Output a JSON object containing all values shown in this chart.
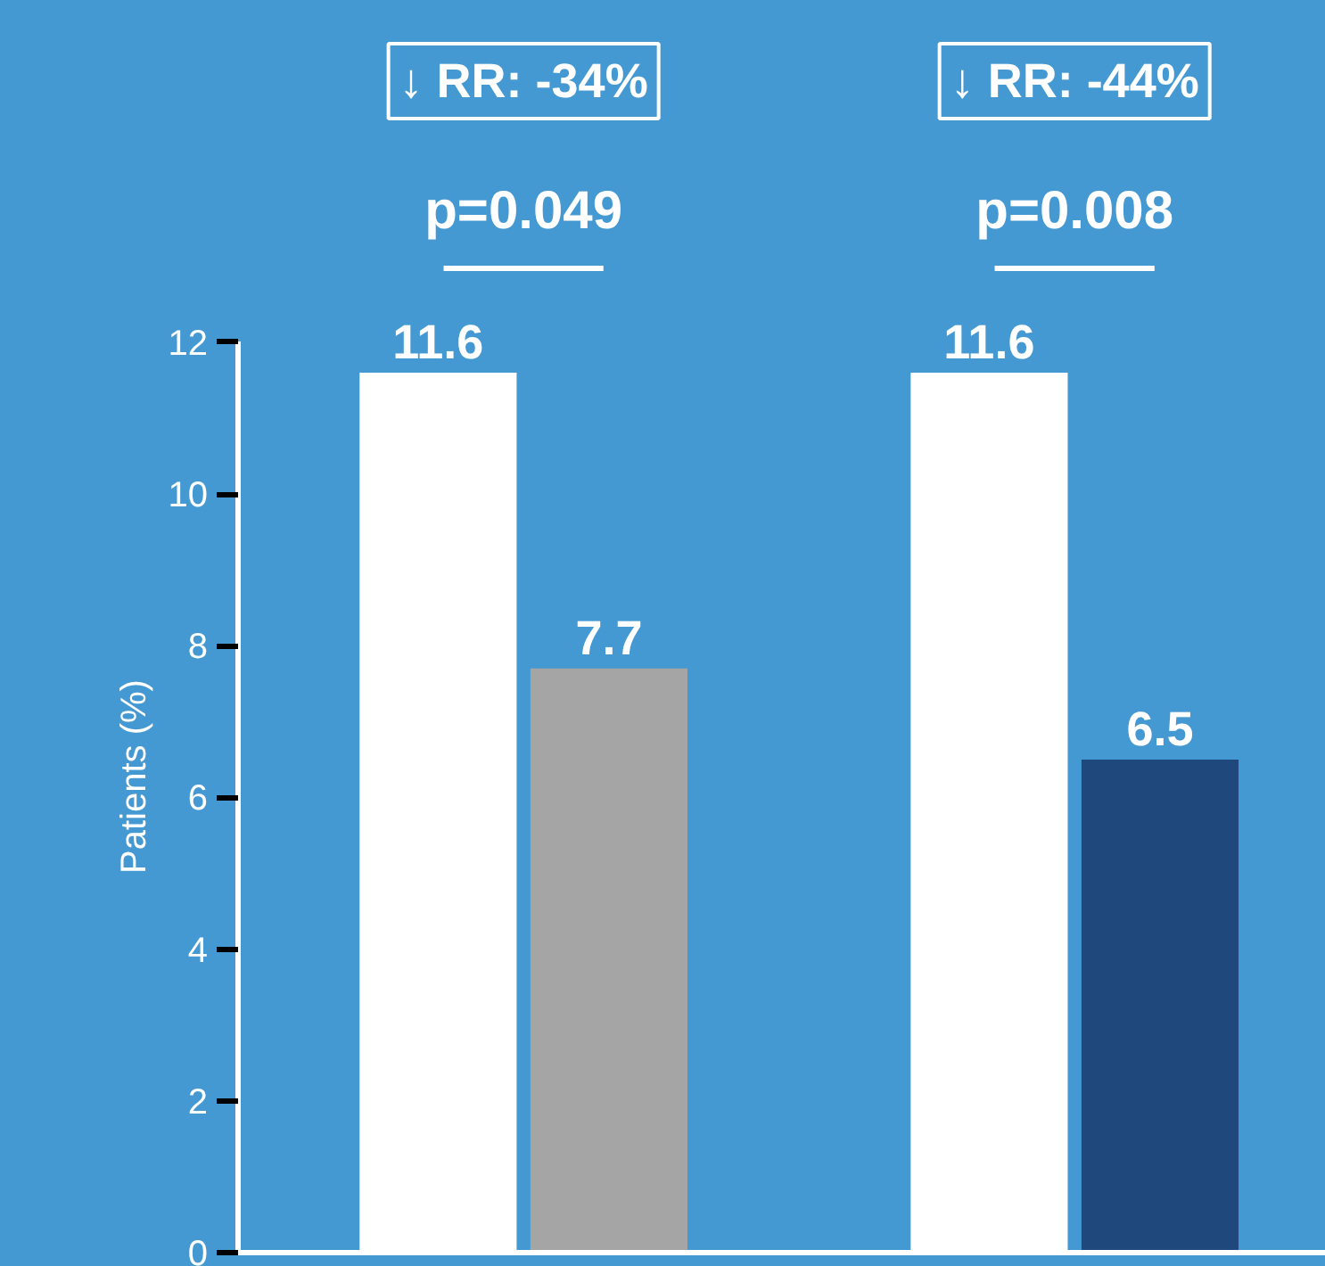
{
  "chart_data": {
    "type": "bar",
    "ylabel": "Patients (%)",
    "categories": [
      null,
      null
    ],
    "series": [
      {
        "color": "#ffffff",
        "values": [
          11.6,
          11.6
        ]
      },
      {
        "colors": [
          "#a5a5a5",
          "#1f497d"
        ],
        "values": [
          7.7,
          6.5
        ]
      }
    ],
    "ylim": [
      0,
      12
    ],
    "yticks": [
      0,
      2,
      4,
      6,
      8,
      10,
      12
    ],
    "data_labels": true,
    "tick_labels": "y",
    "annotations": [
      "↓ RR: -34%",
      "p=0.049",
      "↓ RR: -44%",
      "p=0.008"
    ]
  }
}
